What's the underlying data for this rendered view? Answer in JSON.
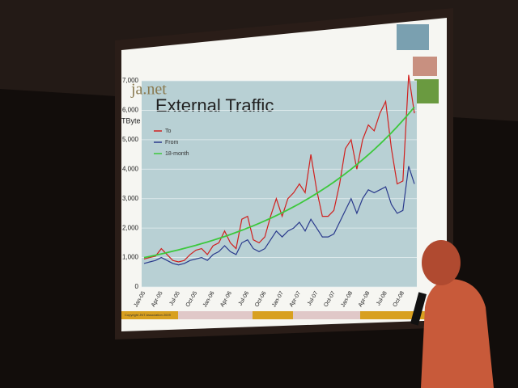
{
  "chart_data": {
    "type": "line",
    "logo": "ja.net",
    "title": "External Traffic",
    "ylabel": "TByte",
    "footer": "Copyright JNT Association 2009",
    "categories": [
      "Jan-05",
      null,
      null,
      "Apr-05",
      null,
      null,
      "Jul-05",
      null,
      null,
      "Oct-05",
      null,
      null,
      "Jan-06",
      null,
      null,
      "Apr-06",
      null,
      null,
      "Jul-06",
      null,
      null,
      "Oct-06",
      null,
      null,
      "Jan-07",
      null,
      null,
      "Apr-07",
      null,
      null,
      "Jul-07",
      null,
      null,
      "Oct-07",
      null,
      null,
      "Jan-08",
      null,
      null,
      "Apr-08",
      null,
      null,
      "Jul-08",
      null,
      null,
      "Oct-08",
      null,
      null
    ],
    "series": [
      {
        "name": "To",
        "color": "#d0201e",
        "values": [
          950,
          1000,
          1050,
          1300,
          1100,
          900,
          850,
          900,
          1100,
          1250,
          1300,
          1100,
          1400,
          1500,
          1900,
          1500,
          1300,
          2300,
          2400,
          1600,
          1500,
          1700,
          2400,
          3000,
          2400,
          3000,
          3200,
          3500,
          3200,
          4500,
          3300,
          2400,
          2400,
          2600,
          3500,
          4700,
          5000,
          4000,
          5000,
          5500,
          5300,
          5900,
          6300,
          4700,
          3500,
          3600,
          7200,
          5900
        ]
      },
      {
        "name": "From",
        "color": "#2a3a8c",
        "values": [
          800,
          850,
          900,
          1000,
          900,
          800,
          750,
          800,
          900,
          950,
          1000,
          900,
          1100,
          1200,
          1400,
          1200,
          1100,
          1500,
          1600,
          1300,
          1200,
          1300,
          1600,
          1900,
          1700,
          1900,
          2000,
          2200,
          1900,
          2300,
          2000,
          1700,
          1700,
          1800,
          2200,
          2600,
          3000,
          2500,
          3000,
          3300,
          3200,
          3300,
          3400,
          2800,
          2500,
          2600,
          4100,
          3500
        ]
      },
      {
        "name": "18-month",
        "color": "#3cc83c",
        "values": [
          1000,
          1039,
          1080,
          1122,
          1166,
          1212,
          1260,
          1309,
          1361,
          1414,
          1470,
          1527,
          1587,
          1650,
          1714,
          1782,
          1852,
          1924,
          2000,
          2079,
          2160,
          2245,
          2333,
          2425,
          2520,
          2619,
          2722,
          2828,
          2939,
          3055,
          3175,
          3300,
          3429,
          3564,
          3704,
          3849,
          4000,
          4157,
          4320,
          4490,
          4666,
          4850,
          5040,
          5238,
          5444,
          5657,
          5879,
          6110
        ]
      }
    ],
    "ylim": [
      0,
      7000
    ],
    "yticks": [
      0,
      {
        "value": 1000,
        "label": "1,000"
      },
      {
        "value": 2000,
        "label": "2,000"
      },
      {
        "value": 3000,
        "label": "3,000"
      },
      {
        "value": 4000,
        "label": "4,000"
      },
      {
        "value": 5000,
        "label": "5,000"
      },
      {
        "value": 6000,
        "label": "6,000"
      },
      {
        "value": 7000,
        "label": "7,000"
      }
    ],
    "grid": true
  }
}
